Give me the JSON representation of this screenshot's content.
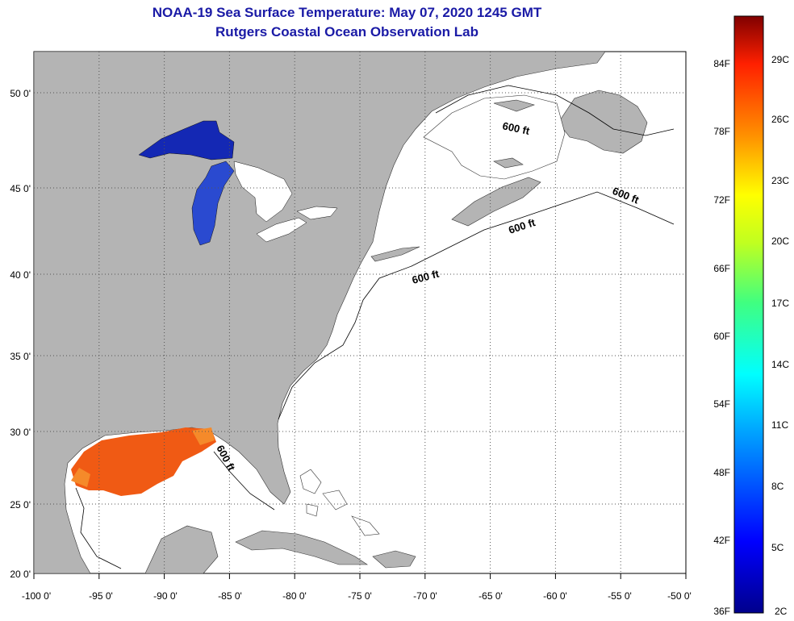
{
  "title": {
    "line1": "NOAA-19 Sea Surface Temperature:  May 07, 2020 1245 GMT",
    "line2": "Rutgers Coastal Ocean Observation Lab"
  },
  "map": {
    "lon_labels": [
      "-100 0'",
      "-95 0'",
      "-90 0'",
      "-85 0'",
      "-80 0'",
      "-75 0'",
      "-70 0'",
      "-65 0'",
      "-60 0'",
      "-55 0'",
      "-50 0'"
    ],
    "lat_labels": [
      "50 0'",
      "45 0'",
      "40 0'",
      "35 0'",
      "30 0'",
      "25 0'",
      "20 0'"
    ],
    "isobath_labels": [
      "600 ft",
      "600 ft",
      "600 ft",
      "600 ft",
      "600 ft"
    ]
  },
  "colorbar": {
    "f_labels": [
      "84F",
      "78F",
      "72F",
      "66F",
      "60F",
      "54F",
      "48F",
      "42F",
      "36F"
    ],
    "c_labels": [
      "29C",
      "26C",
      "23C",
      "20C",
      "17C",
      "14C",
      "11C",
      "8C",
      "5C",
      "2C"
    ]
  },
  "colors": {
    "land": "#b4b4b4",
    "ocean": "#ffffff",
    "lake_cold": "#1428b4",
    "gulf_warm": "#f05a14",
    "title": "#1a1aa6"
  }
}
